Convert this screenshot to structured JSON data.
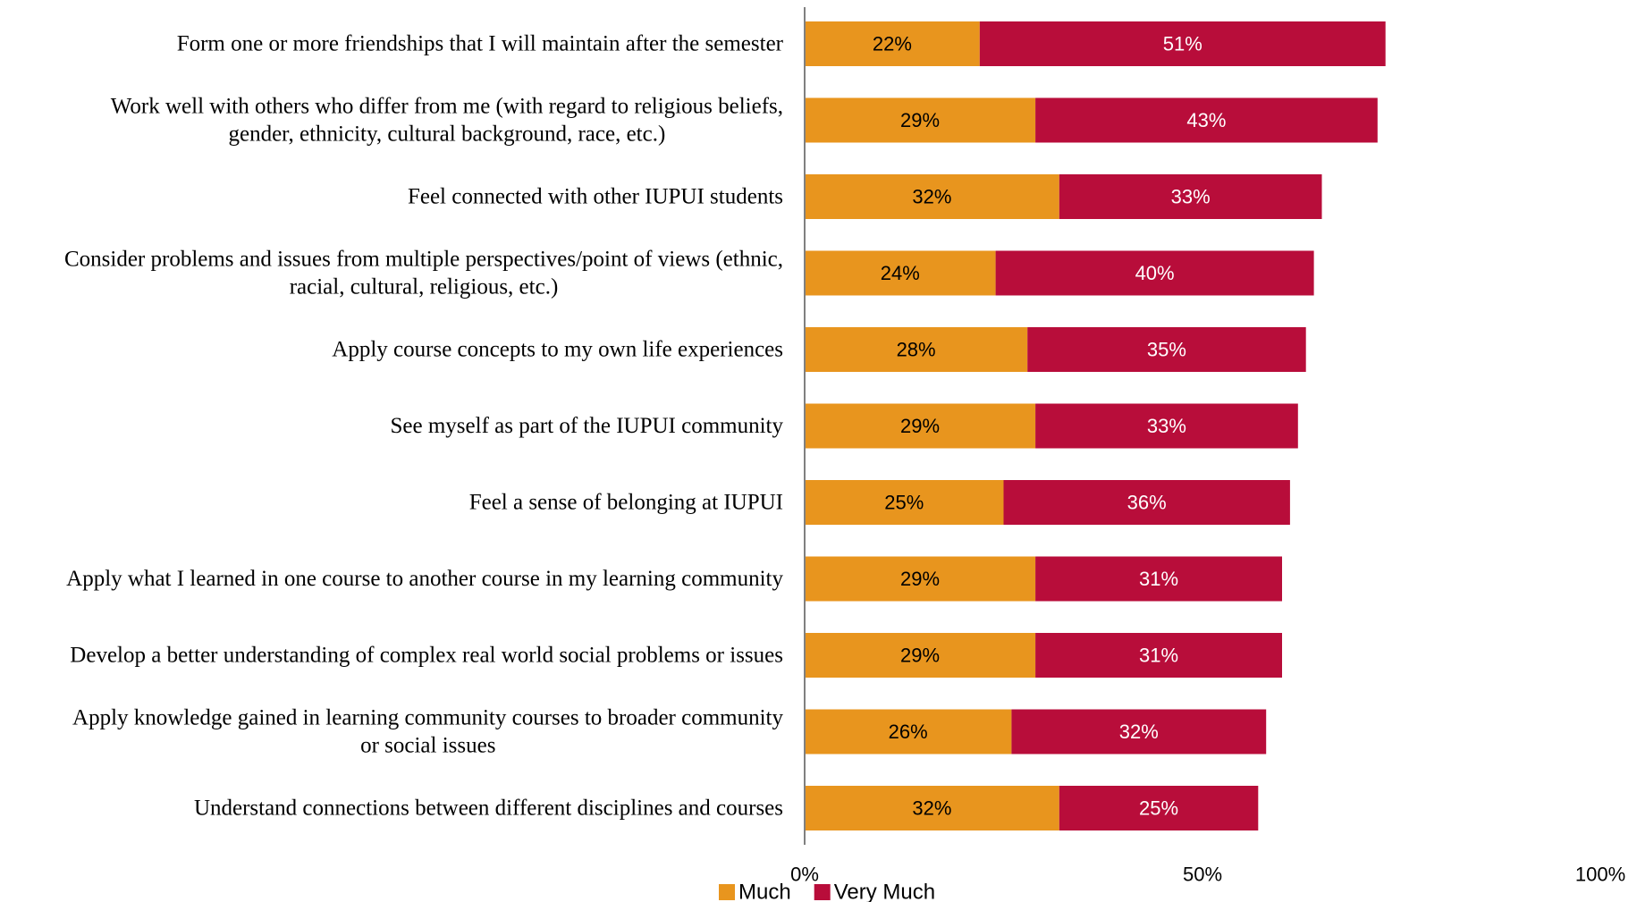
{
  "chart_data": {
    "type": "bar",
    "orientation": "horizontal",
    "stacked": true,
    "categories": [
      "Form one or more friendships that I will maintain after the semester",
      "Work well with others who differ from me (with regard to religious beliefs, gender, ethnicity, cultural background, race, etc.)",
      "Feel connected with other IUPUI students",
      "Consider problems and issues from multiple perspectives/point of views (ethnic, racial, cultural, religious, etc.)",
      "Apply course concepts to my own life experiences",
      "See myself as part of the IUPUI community",
      "Feel a sense of belonging at IUPUI",
      "Apply what I learned in one course to another course in my learning community",
      "Develop a better understanding of complex real world social problems or issues",
      "Apply knowledge gained in learning community courses to broader community or social issues",
      "Understand connections between different disciplines and courses"
    ],
    "category_lines": [
      [
        "Form one or more friendships that I will maintain after the semester"
      ],
      [
        "Work well with others who differ from me (with regard to religious beliefs,",
        "gender, ethnicity, cultural background, race, etc.)"
      ],
      [
        "Feel connected with other IUPUI students"
      ],
      [
        "Consider problems and issues from multiple perspectives/point of views (ethnic,",
        "racial, cultural, religious, etc.)"
      ],
      [
        "Apply course concepts to my own life experiences"
      ],
      [
        "See myself as part of the IUPUI community"
      ],
      [
        "Feel a sense of belonging at IUPUI"
      ],
      [
        "Apply what I learned in one course to another course in my learning community"
      ],
      [
        "Develop a better understanding of complex real world social problems or issues"
      ],
      [
        "Apply knowledge gained in learning community courses to broader community",
        "or social issues"
      ],
      [
        "Understand connections between different disciplines and courses"
      ]
    ],
    "series": [
      {
        "name": "Much",
        "color": "#E8951E",
        "label_color": "#000000",
        "values": [
          22,
          29,
          32,
          24,
          28,
          29,
          25,
          29,
          29,
          26,
          32
        ],
        "labels": [
          "22%",
          "29%",
          "32%",
          "24%",
          "28%",
          "29%",
          "25%",
          "29%",
          "29%",
          "26%",
          "32%"
        ]
      },
      {
        "name": "Very Much",
        "color": "#B80D3A",
        "label_color": "#ffffff",
        "values": [
          51,
          43,
          33,
          40,
          35,
          33,
          36,
          31,
          31,
          32,
          25
        ],
        "labels": [
          "51%",
          "43%",
          "33%",
          "40%",
          "35%",
          "33%",
          "36%",
          "31%",
          "31%",
          "32%",
          "25%"
        ]
      }
    ],
    "xlim": [
      0,
      100
    ],
    "xticks": [
      0,
      50,
      100
    ],
    "xtick_labels": [
      "0%",
      "50%",
      "100%"
    ],
    "title": "",
    "xlabel": "",
    "ylabel": "",
    "grid": false,
    "legend": {
      "position": "bottom",
      "entries": [
        "Much",
        "Very Much"
      ]
    }
  }
}
